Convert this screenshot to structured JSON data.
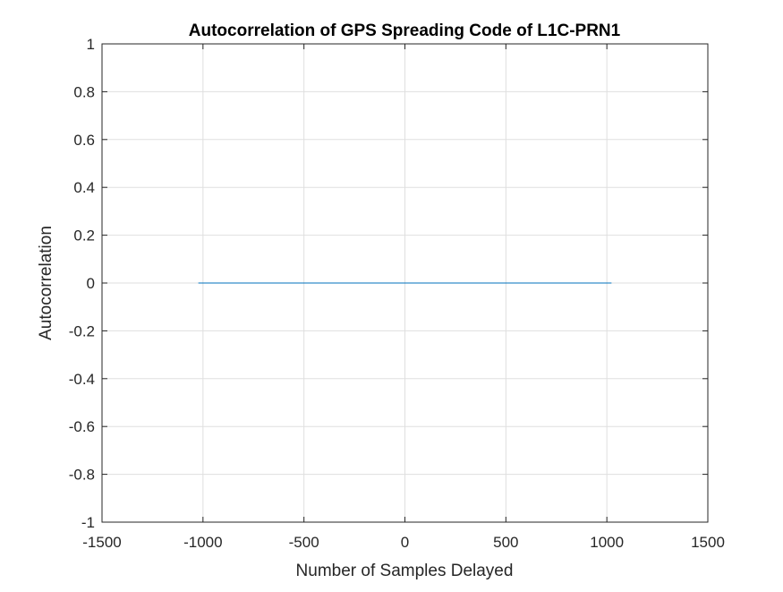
{
  "chart_data": {
    "type": "line",
    "title": "Autocorrelation of GPS Spreading Code of L1C-PRN1",
    "xlabel": "Number of Samples Delayed",
    "ylabel": "Autocorrelation",
    "xlim": [
      -1500,
      1500
    ],
    "ylim": [
      -1,
      1
    ],
    "xticks": [
      -1500,
      -1000,
      -500,
      0,
      500,
      1000,
      1500
    ],
    "yticks": [
      -1,
      -0.8,
      -0.6,
      -0.4,
      -0.2,
      0,
      0.2,
      0.4,
      0.6,
      0.8,
      1
    ],
    "grid": true,
    "series": [
      {
        "color": "#0072bd",
        "x": [
          -1023,
          1023
        ],
        "y": [
          0,
          0
        ]
      }
    ]
  }
}
